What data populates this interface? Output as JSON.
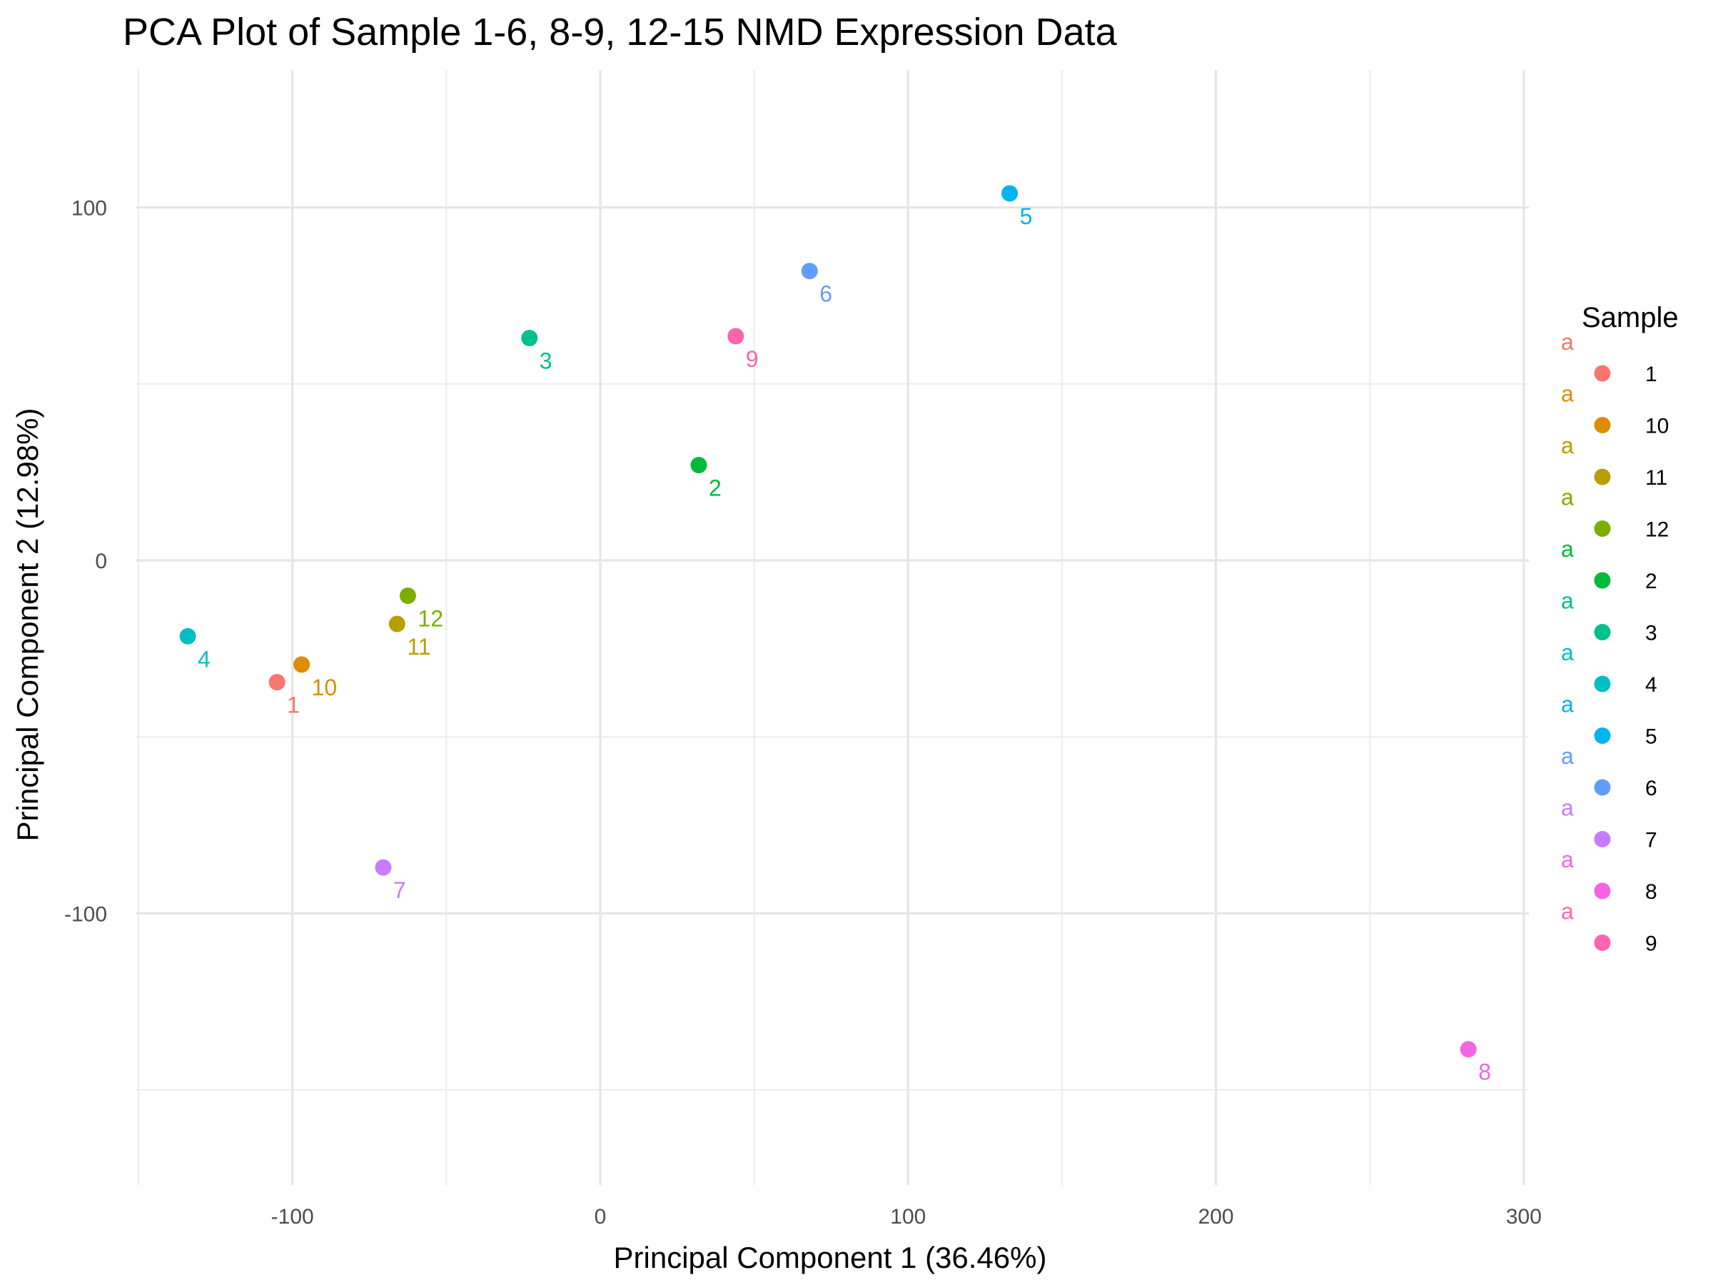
{
  "chart_data": {
    "type": "scatter",
    "title": "PCA Plot of Sample 1-6, 8-9, 12-15 NMD Expression Data",
    "xlabel": "Principal Component 1 (36.46%)",
    "ylabel": "Principal Component 2 (12.98%)",
    "xlim": [
      -150,
      300
    ],
    "ylim": [
      -180,
      140
    ],
    "x_ticks": [
      -100,
      0,
      100,
      200,
      300
    ],
    "y_ticks": [
      -100,
      0,
      100
    ],
    "grid": true,
    "legend": {
      "title": "Sample",
      "position": "right",
      "key_glyph_text": "a"
    },
    "points": [
      {
        "label": "1",
        "x": -105,
        "y": -34.5,
        "color": "#F8766D"
      },
      {
        "label": "10",
        "x": -97,
        "y": -29.5,
        "color": "#DE8C00"
      },
      {
        "label": "11",
        "x": -66,
        "y": -18,
        "color": "#B79F00"
      },
      {
        "label": "12",
        "x": -62.5,
        "y": -10,
        "color": "#7CAE00"
      },
      {
        "label": "2",
        "x": 32,
        "y": 27,
        "color": "#00BA38"
      },
      {
        "label": "3",
        "x": -23,
        "y": 63,
        "color": "#00C08B"
      },
      {
        "label": "4",
        "x": -134,
        "y": -21.5,
        "color": "#00BFC4"
      },
      {
        "label": "5",
        "x": 133,
        "y": 104,
        "color": "#00B4F0"
      },
      {
        "label": "6",
        "x": 68,
        "y": 82,
        "color": "#619CFF"
      },
      {
        "label": "7",
        "x": -70.5,
        "y": -87,
        "color": "#C77CFF"
      },
      {
        "label": "8",
        "x": 282,
        "y": -138.5,
        "color": "#F564E3"
      },
      {
        "label": "9",
        "x": 44,
        "y": 63.5,
        "color": "#FF64B0"
      }
    ]
  }
}
